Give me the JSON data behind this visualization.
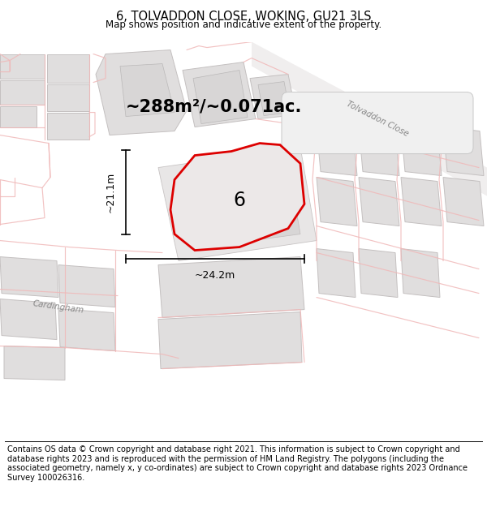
{
  "title": "6, TOLVADDON CLOSE, WOKING, GU21 3LS",
  "subtitle": "Map shows position and indicative extent of the property.",
  "area_text": "~288m²/~0.071ac.",
  "dim_width": "~24.2m",
  "dim_height": "~21.1m",
  "label": "6",
  "footer": "Contains OS data © Crown copyright and database right 2021. This information is subject to Crown copyright and database rights 2023 and is reproduced with the permission of HM Land Registry. The polygons (including the associated geometry, namely x, y co-ordinates) are subject to Crown copyright and database rights 2023 Ordnance Survey 100026316.",
  "road_label_tolvaddon": "Tolvaddon Close",
  "road_label_cardingham": "Cardingham",
  "red_color": "#dd0000",
  "light_red": "#f0b8b8",
  "gray_block": "#e0dede",
  "map_bg": "#f8f7f7",
  "title_fontsize": 10.5,
  "subtitle_fontsize": 8.5,
  "area_fontsize": 15,
  "label_fontsize": 17,
  "footer_fontsize": 7.0
}
